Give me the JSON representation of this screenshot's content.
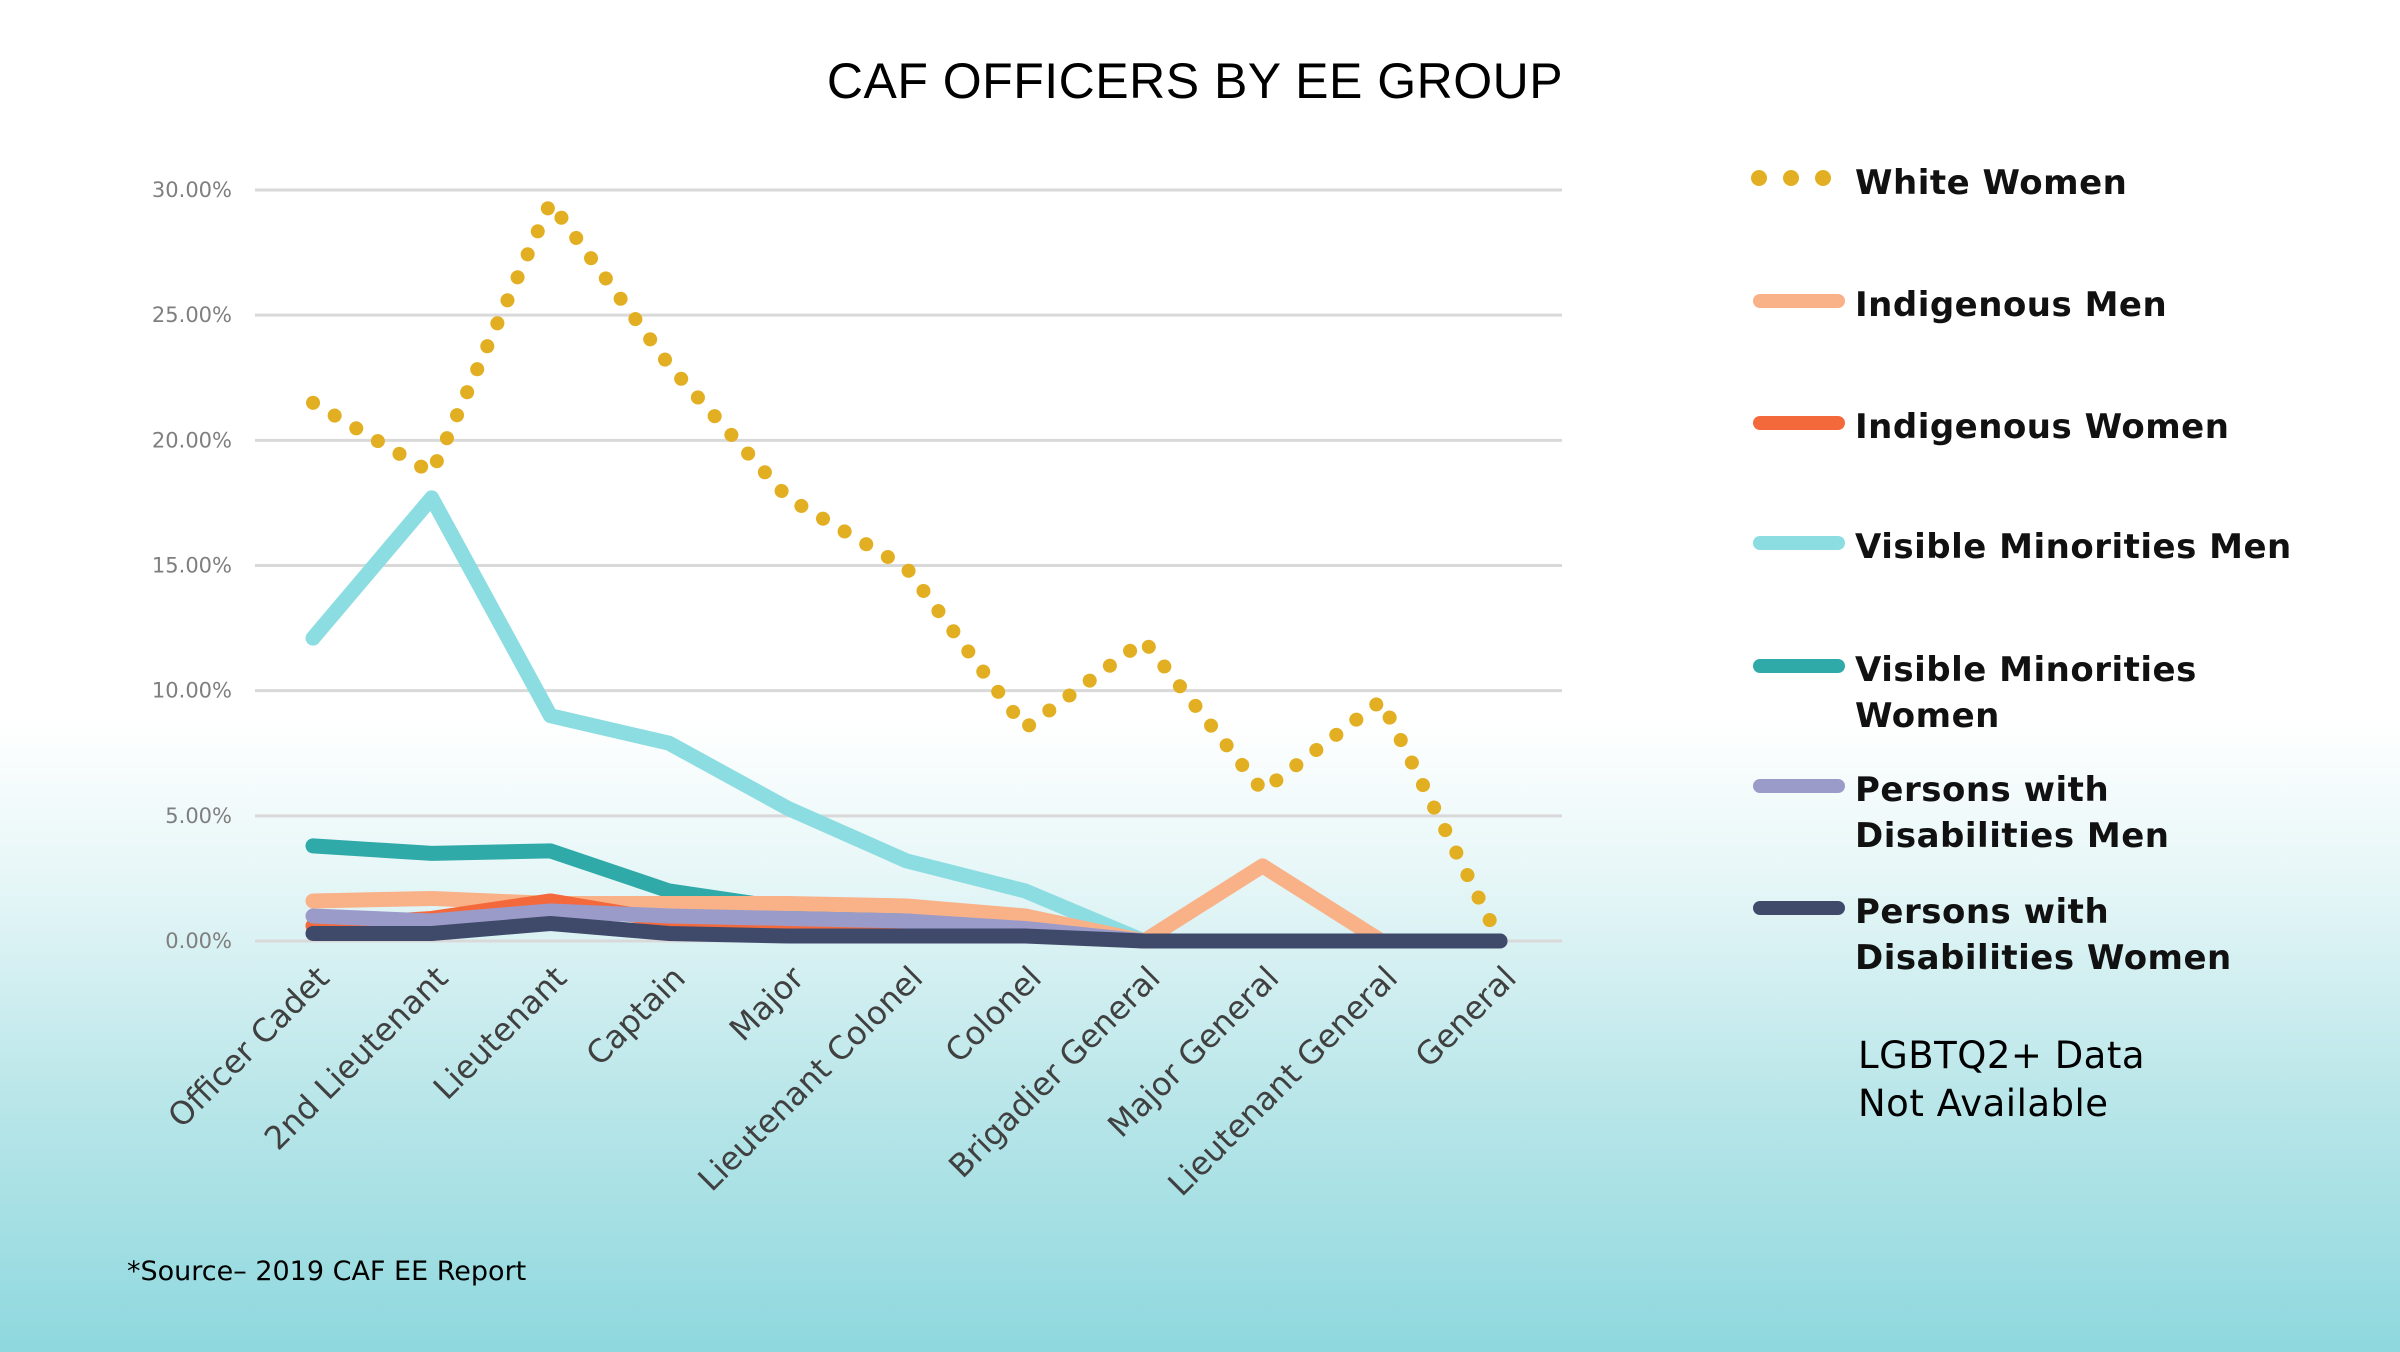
{
  "slide": {
    "title": "CAF OFFICERS BY EE GROUP",
    "source": "*Source– 2019 CAF EE Report",
    "note": "LGBTQ2+ Data Not Available"
  },
  "chart_data": {
    "type": "line",
    "title": "CAF OFFICERS BY EE GROUP",
    "xlabel": "",
    "ylabel": "",
    "ylim": [
      0,
      30
    ],
    "yticks": [
      "0.00%",
      "5.00%",
      "10.00%",
      "15.00%",
      "20.00%",
      "25.00%",
      "30.00%"
    ],
    "ytick_values": [
      0,
      5,
      10,
      15,
      20,
      25,
      30
    ],
    "grid": true,
    "legend_position": "right",
    "categories": [
      "Officer Cadet",
      "2nd Lieutenant",
      "Lieutenant",
      "Captain",
      "Major",
      "Lieutenant Colonel",
      "Colonel",
      "Brigadier General",
      "Major General",
      "Lieutenant General",
      "General"
    ],
    "series": [
      {
        "name": "White Women",
        "color": "#E2AF23",
        "style": "dotted",
        "values": [
          21.5,
          18.7,
          29.5,
          23.0,
          17.7,
          14.9,
          8.5,
          12.0,
          6.0,
          9.6,
          0.0
        ]
      },
      {
        "name": "Indigenous Men",
        "color": "#F9B188",
        "style": "solid",
        "values": [
          1.6,
          1.7,
          1.5,
          1.5,
          1.5,
          1.4,
          1.0,
          0.0,
          3.0,
          0.0,
          0.0
        ]
      },
      {
        "name": "Indigenous Women",
        "color": "#F4693B",
        "style": "solid",
        "values": [
          0.6,
          0.9,
          1.6,
          0.8,
          0.5,
          0.5,
          0.3,
          0.0,
          0.0,
          0.0,
          0.0
        ]
      },
      {
        "name": "Visible Minorities Men",
        "color": "#8BDDE2",
        "style": "solid",
        "values": [
          12.1,
          17.7,
          9.0,
          7.9,
          5.3,
          3.2,
          2.0,
          0.0,
          0.0,
          0.0,
          0.0
        ]
      },
      {
        "name": "Visible Minorities Women",
        "color": "#2FAAA8",
        "style": "solid",
        "values": [
          3.8,
          3.5,
          3.6,
          2.0,
          1.3,
          1.0,
          0.5,
          0.0,
          0.0,
          0.0,
          0.0
        ]
      },
      {
        "name": "Persons with Disabilities Men",
        "color": "#9B9BC9",
        "style": "solid",
        "values": [
          1.0,
          0.8,
          1.2,
          1.0,
          0.9,
          0.8,
          0.5,
          0.0,
          0.0,
          0.0,
          0.0
        ]
      },
      {
        "name": "Persons with Disabilities Women",
        "color": "#3F4A6B",
        "style": "solid",
        "values": [
          0.3,
          0.3,
          0.7,
          0.3,
          0.2,
          0.2,
          0.2,
          0.0,
          0.0,
          0.0,
          0.0
        ]
      }
    ]
  },
  "legend": {
    "items": [
      {
        "label": "White Women",
        "color": "#E2AF23",
        "style": "dotted"
      },
      {
        "label": "Indigenous Men",
        "color": "#F9B188",
        "style": "solid"
      },
      {
        "label": "Indigenous Women",
        "color": "#F4693B",
        "style": "solid"
      },
      {
        "label": "Visible Minorities Men",
        "color": "#8BDDE2",
        "style": "solid"
      },
      {
        "label": "Visible Minorities Women",
        "color": "#2FAAA8",
        "style": "solid"
      },
      {
        "label": "Persons with Disabilities Men",
        "color": "#9B9BC9",
        "style": "solid"
      },
      {
        "label": "Persons with Disabilities Women",
        "color": "#3F4A6B",
        "style": "solid"
      }
    ]
  }
}
